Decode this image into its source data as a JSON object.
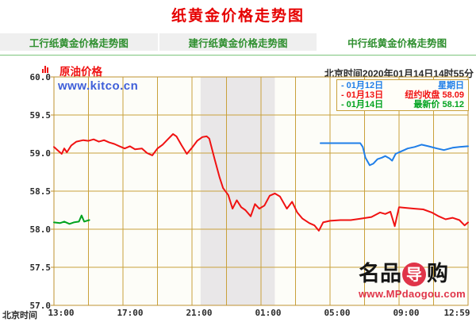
{
  "header": {
    "title": "纸黄金价格走势图"
  },
  "tabs": [
    {
      "label": "工行纸黄金价格走势图",
      "active": false
    },
    {
      "label": "建行纸黄金价格走势图",
      "active": false
    },
    {
      "label": "中行纸黄金价格走势图",
      "active": true
    }
  ],
  "chart": {
    "title_label": "原油价格",
    "beijing_time": "北京时间2020年01月14日14时55分",
    "watermark_kitco": "www.kitco.cn",
    "x_axis_prefix": "北京时间"
  },
  "legend": {
    "rows": [
      {
        "marker": "-",
        "date": "01月12日",
        "value": "星期日",
        "color": "#1f7ee8"
      },
      {
        "marker": "-",
        "date": "01月13日",
        "value": "纽约收盘 58.09",
        "color": "#f01212"
      },
      {
        "marker": "-",
        "date": "01月14日",
        "value": "最新价 58.12",
        "color": "#00a31f"
      }
    ]
  },
  "watermark_mp": {
    "left": "名品",
    "circle": "导",
    "right": "购",
    "url": "www.MPdaogou.com",
    "red": "#e03449"
  },
  "chart_data": {
    "type": "line",
    "title": "原油价格",
    "x_axis": {
      "prefix": "北京时间",
      "tick_labels": [
        "13:00",
        "17:00",
        "21:00",
        "01:00",
        "05:00",
        "09:00",
        "12:59"
      ],
      "tick_hours": [
        0,
        4,
        8,
        12,
        16,
        20,
        24
      ],
      "hours_span": 24,
      "grid_step_hours": 2
    },
    "y_axis": {
      "min": 57.0,
      "max": 60.0,
      "step": 0.5,
      "tick_labels": [
        "60.0",
        "59.5",
        "59.0",
        "58.5",
        "58.0",
        "57.5",
        "57.0"
      ],
      "tick_values": [
        60.0,
        59.5,
        59.0,
        58.5,
        58.0,
        57.5,
        57.0
      ]
    },
    "shaded_band_hours": [
      8.5,
      12.8
    ],
    "colors": {
      "grid": "#c9a13b",
      "frame": "#bf9230",
      "band": "#e9e7e8",
      "plot_bg": "#fdfdf8"
    },
    "series": [
      {
        "name": "01月12日",
        "color": "#1f7ee8",
        "points": [
          [
            15.45,
            59.13
          ],
          [
            17.75,
            59.13
          ],
          [
            17.9,
            59.08
          ],
          [
            18.05,
            58.94
          ],
          [
            18.3,
            58.84
          ],
          [
            18.5,
            58.86
          ],
          [
            18.75,
            58.92
          ],
          [
            19.0,
            58.94
          ],
          [
            19.2,
            58.96
          ],
          [
            19.45,
            58.93
          ],
          [
            19.6,
            58.9
          ],
          [
            19.8,
            58.99
          ],
          [
            20.1,
            59.02
          ],
          [
            20.5,
            59.06
          ],
          [
            20.9,
            59.08
          ],
          [
            21.3,
            59.11
          ],
          [
            21.7,
            59.09
          ],
          [
            22.2,
            59.06
          ],
          [
            22.6,
            59.04
          ],
          [
            23.1,
            59.07
          ],
          [
            23.5,
            59.08
          ],
          [
            24.0,
            59.09
          ]
        ]
      },
      {
        "name": "01月13日",
        "color": "#f01212",
        "points": [
          [
            0,
            59.08
          ],
          [
            0.25,
            59.03
          ],
          [
            0.45,
            58.99
          ],
          [
            0.6,
            59.06
          ],
          [
            0.75,
            59.01
          ],
          [
            1.0,
            59.1
          ],
          [
            1.3,
            59.15
          ],
          [
            1.7,
            59.17
          ],
          [
            2.0,
            59.16
          ],
          [
            2.3,
            59.18
          ],
          [
            2.6,
            59.15
          ],
          [
            2.9,
            59.17
          ],
          [
            3.2,
            59.14
          ],
          [
            3.5,
            59.12
          ],
          [
            3.8,
            59.09
          ],
          [
            4.1,
            59.06
          ],
          [
            4.4,
            59.09
          ],
          [
            4.7,
            59.05
          ],
          [
            5.1,
            59.06
          ],
          [
            5.4,
            59.0
          ],
          [
            5.7,
            58.97
          ],
          [
            6.0,
            59.06
          ],
          [
            6.3,
            59.11
          ],
          [
            6.6,
            59.18
          ],
          [
            6.9,
            59.25
          ],
          [
            7.1,
            59.22
          ],
          [
            7.4,
            59.1
          ],
          [
            7.7,
            58.99
          ],
          [
            8.0,
            59.07
          ],
          [
            8.3,
            59.16
          ],
          [
            8.6,
            59.21
          ],
          [
            8.85,
            59.22
          ],
          [
            9.0,
            59.19
          ],
          [
            9.3,
            58.93
          ],
          [
            9.6,
            58.68
          ],
          [
            9.8,
            58.54
          ],
          [
            10.1,
            58.45
          ],
          [
            10.35,
            58.27
          ],
          [
            10.6,
            58.38
          ],
          [
            10.85,
            58.29
          ],
          [
            11.1,
            58.25
          ],
          [
            11.4,
            58.17
          ],
          [
            11.65,
            58.33
          ],
          [
            11.9,
            58.27
          ],
          [
            12.2,
            58.31
          ],
          [
            12.5,
            58.44
          ],
          [
            12.8,
            58.47
          ],
          [
            13.1,
            58.43
          ],
          [
            13.5,
            58.27
          ],
          [
            13.8,
            58.36
          ],
          [
            14.1,
            58.22
          ],
          [
            14.4,
            58.14
          ],
          [
            14.8,
            58.08
          ],
          [
            15.1,
            58.05
          ],
          [
            15.35,
            57.98
          ],
          [
            15.6,
            58.09
          ],
          [
            16.0,
            58.11
          ],
          [
            16.6,
            58.12
          ],
          [
            17.2,
            58.12
          ],
          [
            17.8,
            58.14
          ],
          [
            18.4,
            58.16
          ],
          [
            18.9,
            58.22
          ],
          [
            19.2,
            58.2
          ],
          [
            19.5,
            58.23
          ],
          [
            19.75,
            58.04
          ],
          [
            20.0,
            58.29
          ],
          [
            20.4,
            58.28
          ],
          [
            20.9,
            58.27
          ],
          [
            21.4,
            58.26
          ],
          [
            21.9,
            58.22
          ],
          [
            22.3,
            58.17
          ],
          [
            22.7,
            58.13
          ],
          [
            23.1,
            58.15
          ],
          [
            23.5,
            58.12
          ],
          [
            23.8,
            58.05
          ],
          [
            24.0,
            58.09
          ]
        ]
      },
      {
        "name": "01月14日",
        "color": "#00a31f",
        "points": [
          [
            0,
            58.09
          ],
          [
            0.35,
            58.08
          ],
          [
            0.6,
            58.1
          ],
          [
            0.9,
            58.07
          ],
          [
            1.15,
            58.09
          ],
          [
            1.45,
            58.1
          ],
          [
            1.6,
            58.18
          ],
          [
            1.75,
            58.1
          ],
          [
            1.9,
            58.11
          ],
          [
            2.05,
            58.12
          ]
        ]
      }
    ]
  }
}
